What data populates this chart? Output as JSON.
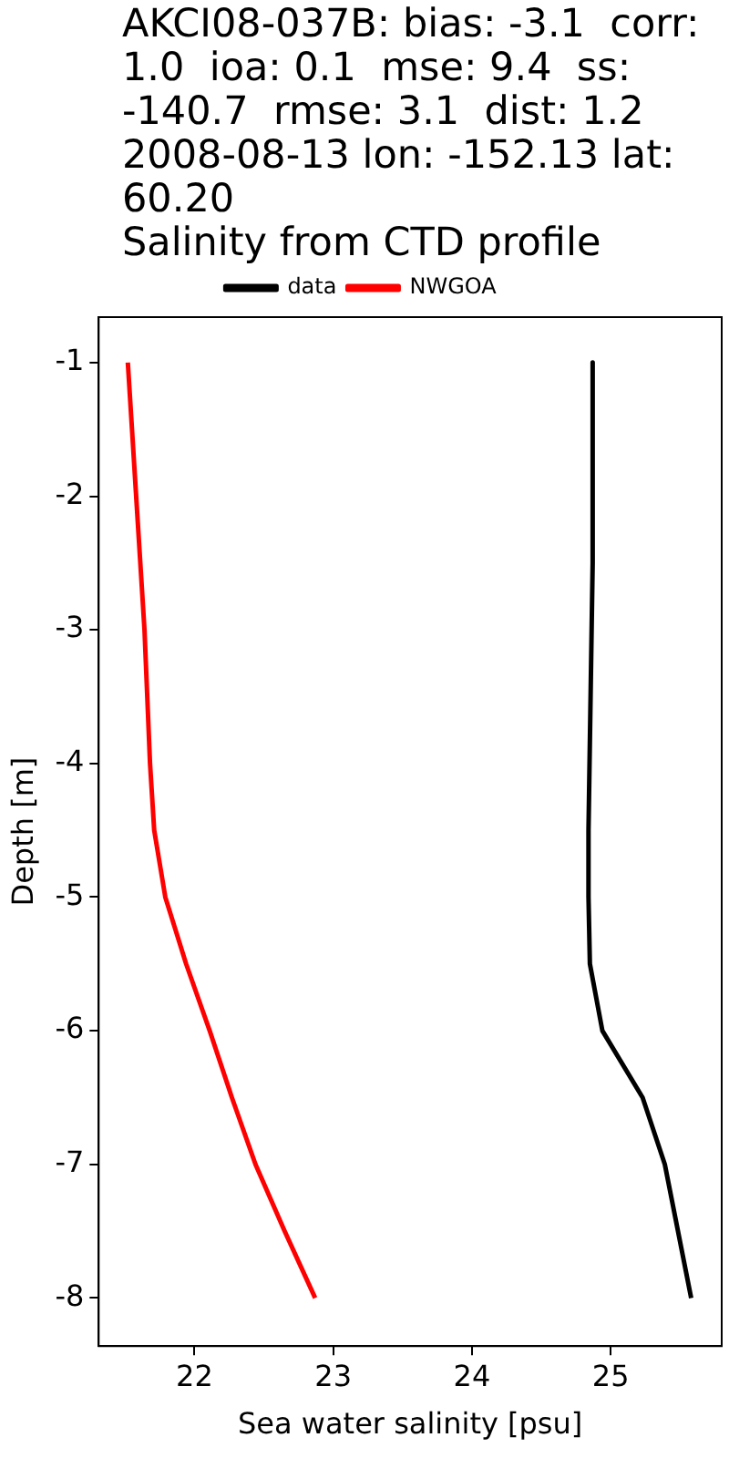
{
  "chart_data": {
    "type": "line",
    "title": "AKCI08-037B: bias: -3.1  corr: 1.0  ioa: 0.1  mse: 9.4  ss: -140.7  rmse: 3.1  dist: 1.2 2008-08-13 lon: -152.13 lat: 60.20",
    "subtitle": "Salinity from CTD profile",
    "xlabel": "Sea water salinity [psu]",
    "ylabel": "Depth [m]",
    "series": [
      {
        "name": "data",
        "color": "#000000",
        "x": [
          24.87,
          24.87,
          24.84,
          24.84,
          24.85,
          24.94,
          25.23,
          25.39,
          25.58
        ],
        "values": [
          -1,
          -2.5,
          -4.5,
          -5,
          -5.5,
          -6,
          -6.5,
          -7,
          -8
        ]
      },
      {
        "name": "NWGOA",
        "color": "#ff0000",
        "x": [
          21.52,
          21.55,
          21.58,
          21.61,
          21.64,
          21.66,
          21.68,
          21.71,
          21.79,
          21.94,
          22.11,
          22.27,
          22.44,
          22.65,
          22.87
        ],
        "values": [
          -1,
          -1.5,
          -2,
          -2.5,
          -3,
          -3.5,
          -4,
          -4.5,
          -5,
          -5.5,
          -6,
          -6.5,
          -7,
          -7.5,
          -8
        ]
      }
    ],
    "xlim": [
      21.31,
      25.8
    ],
    "xticks": [
      22,
      23,
      24,
      25
    ],
    "ylim": [
      -8.36,
      -0.66
    ],
    "yticks": [
      -1,
      -2,
      -3,
      -4,
      -5,
      -6,
      -7,
      -8
    ],
    "legend": "top",
    "marker": "none",
    "line_style": "solid",
    "grid": false
  }
}
